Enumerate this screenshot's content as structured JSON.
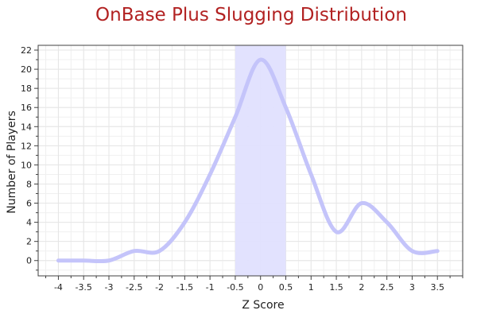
{
  "chart_data": {
    "type": "line",
    "title": "OnBase Plus Slugging Distribution",
    "xlabel": "Z Score",
    "ylabel": "Number of Players",
    "xlim": [
      -4.4,
      4.0
    ],
    "ylim": [
      -1.6,
      22.5
    ],
    "x_ticks": [
      -4,
      -3.5,
      -3,
      -2.5,
      -2,
      -1.5,
      -1,
      -0.5,
      0,
      0.5,
      1,
      1.5,
      2,
      2.5,
      3,
      3.5
    ],
    "x_tick_labels": [
      "-4",
      "-3.5",
      "-3",
      "-2.5",
      "-2",
      "-1.5",
      "-1",
      "-0.5",
      "0",
      "0.5",
      "1",
      "1.5",
      "2",
      "2.5",
      "3",
      "3.5"
    ],
    "y_ticks": [
      0,
      2,
      4,
      6,
      8,
      10,
      12,
      14,
      16,
      18,
      20,
      22
    ],
    "y_tick_labels": [
      "0",
      "2",
      "4",
      "6",
      "8",
      "10",
      "12",
      "14",
      "16",
      "18",
      "20",
      "22"
    ],
    "grid": true,
    "highlight_band": {
      "x_from": -0.5,
      "x_to": 0.5,
      "color": "#e0e0fe"
    },
    "series": [
      {
        "x": [
          -4,
          -3.5,
          -3,
          -2.5,
          -2,
          -1.5,
          -1,
          -0.5,
          0,
          0.5,
          1,
          1.5,
          2,
          2.5,
          3,
          3.5
        ],
        "values": [
          0,
          0,
          0,
          1,
          1,
          4,
          9,
          15,
          21,
          16,
          9,
          3,
          6,
          4,
          1,
          1
        ],
        "color": "#c4c4fa"
      }
    ],
    "colors": {
      "title": "#b22222",
      "line": "#c4c4fa",
      "band": "#e0e0fe",
      "grid": "#e6e6e6",
      "axis": "#404040"
    }
  }
}
